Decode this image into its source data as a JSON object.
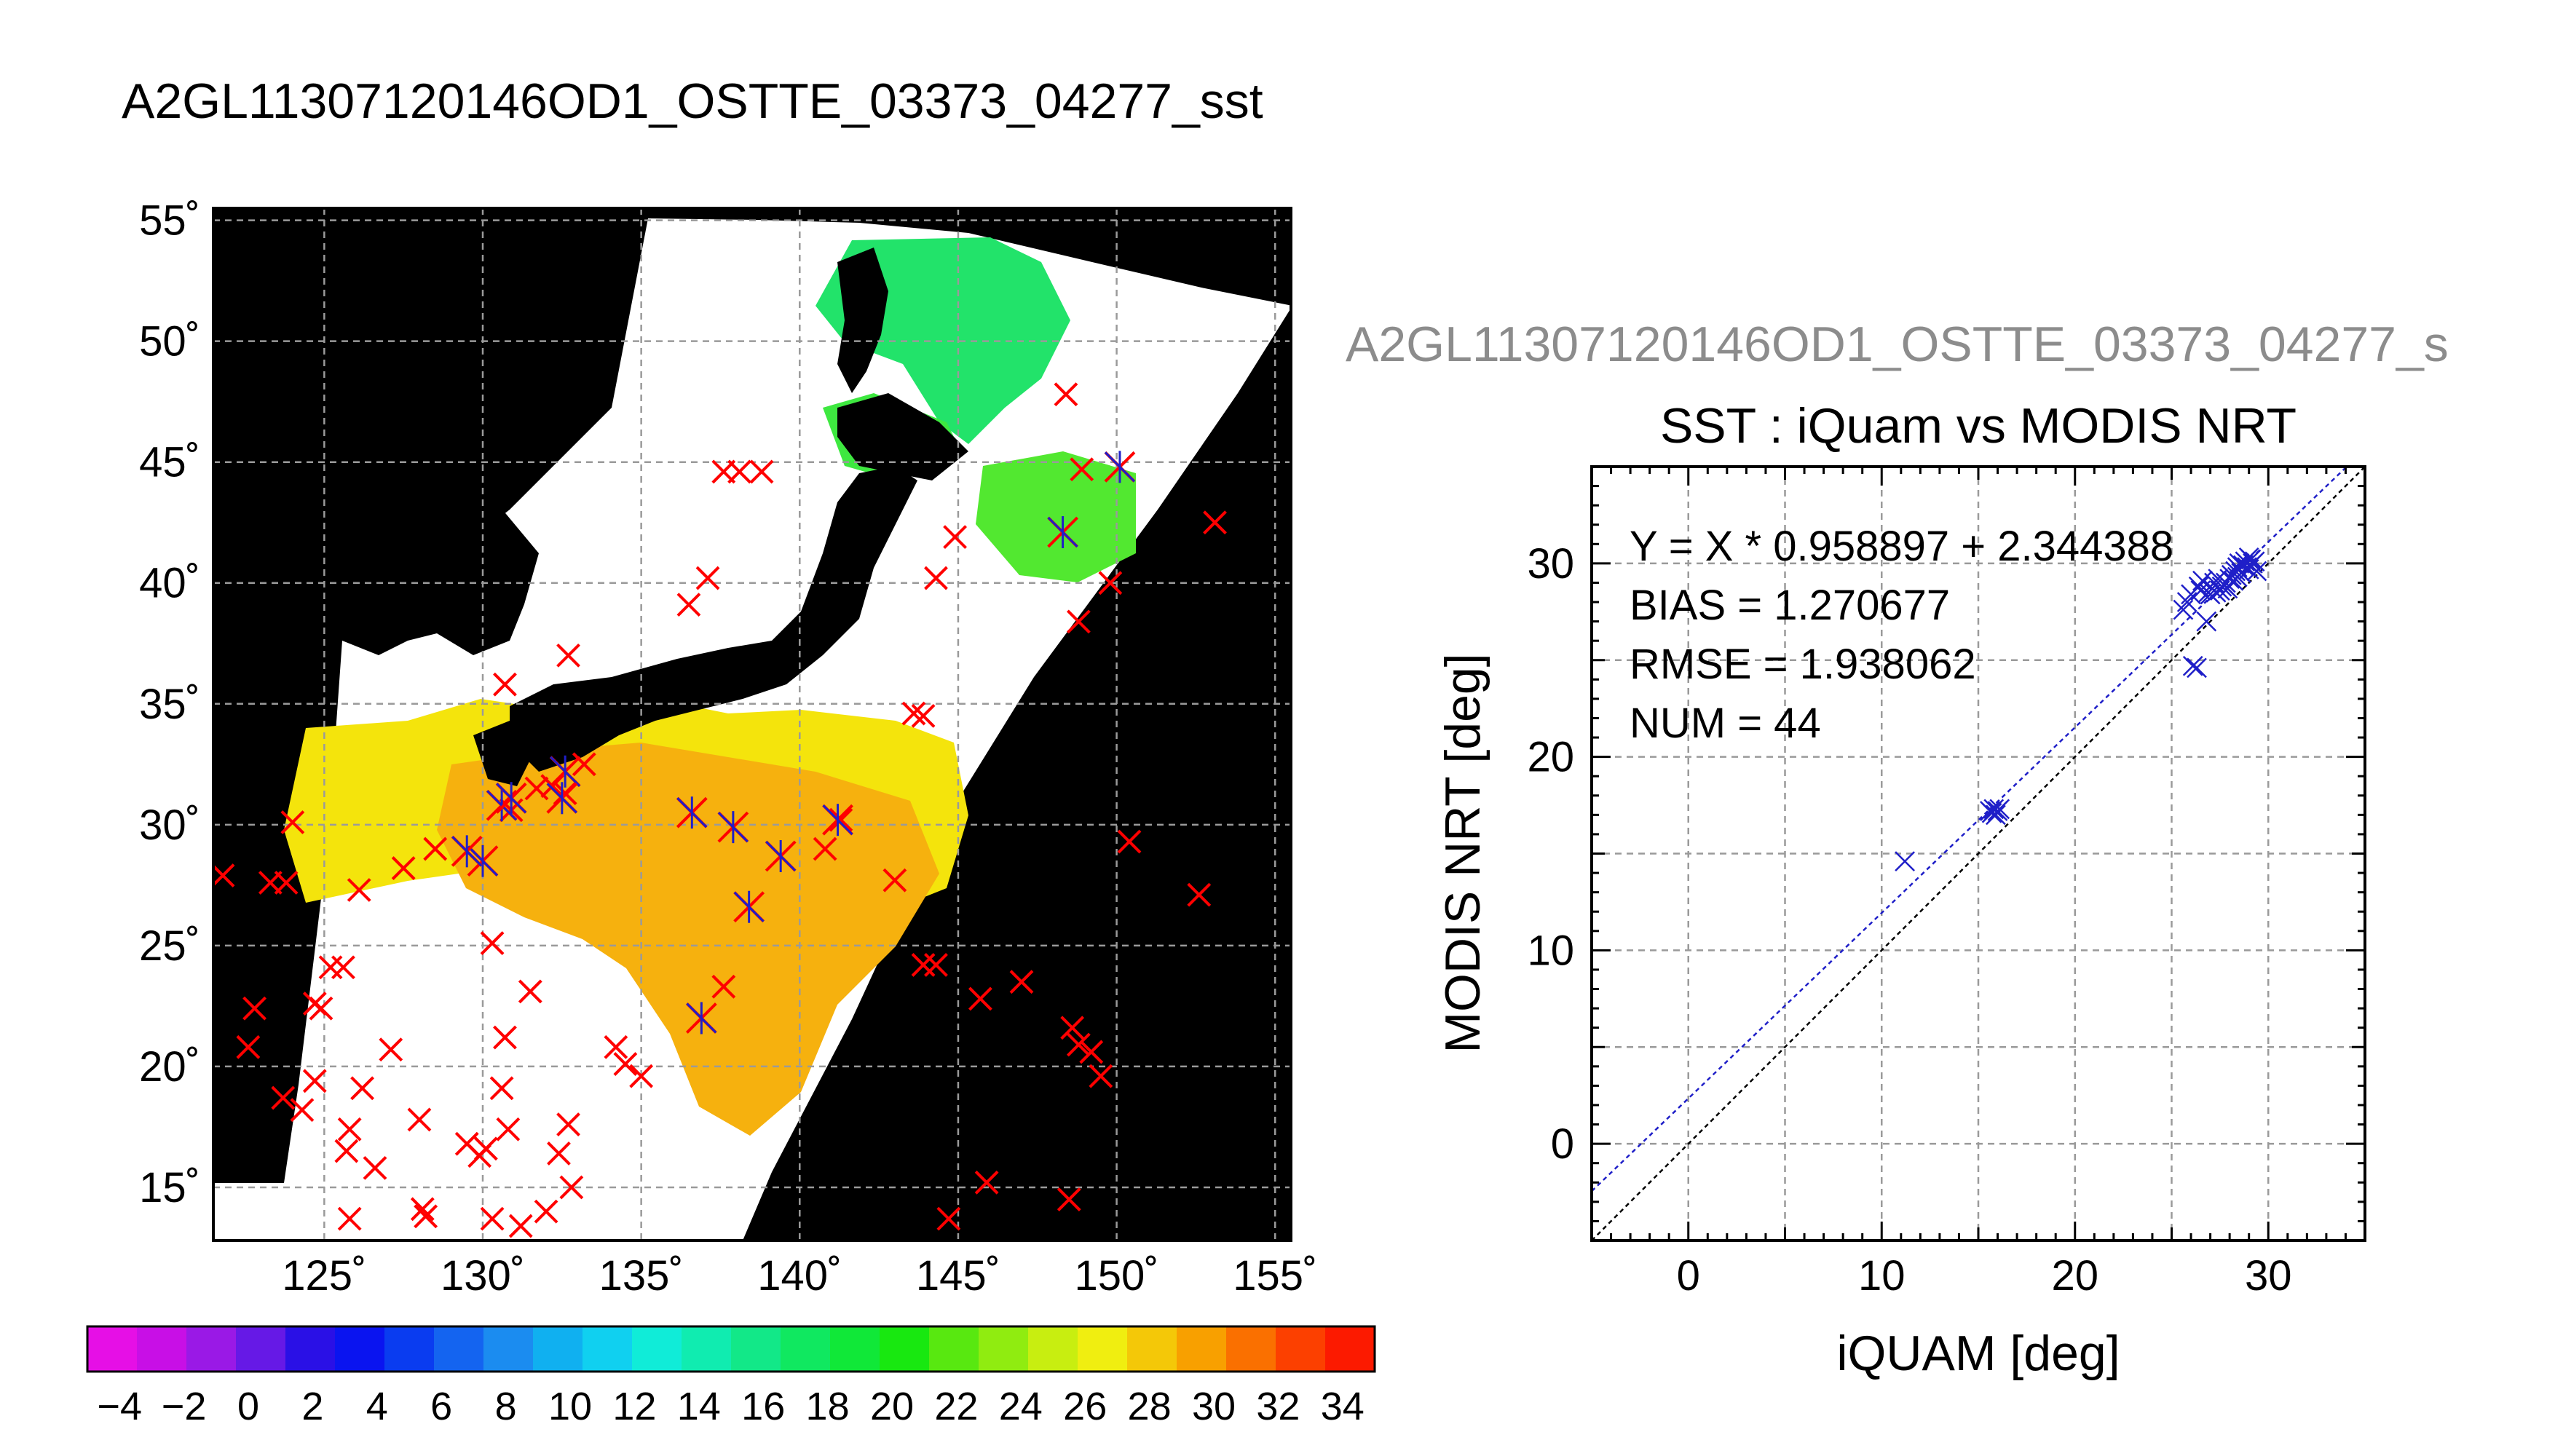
{
  "header": {
    "main_title": "A2GL11307120146OD1_OSTTE_03373_04277_sst",
    "scatter_overtitle": "A2GL11307120146OD1_OSTTE_03373_04277_s"
  },
  "map": {
    "lon_labels": [
      "125˚",
      "130˚",
      "135˚",
      "140˚",
      "145˚",
      "150˚",
      "155˚"
    ],
    "lat_labels": [
      "55˚",
      "50˚",
      "45˚",
      "40˚",
      "35˚",
      "30˚",
      "25˚",
      "20˚",
      "15˚"
    ],
    "lon_range": [
      121.5,
      155.5
    ],
    "lat_range": [
      12.8,
      55.5
    ],
    "colors": {
      "land": "#000000",
      "cloud": "#ffffff",
      "grid": "#9a9a9a",
      "obs": "#ff0000",
      "matchup": "#1f1fc8"
    },
    "observations": [
      [
        121.8,
        27.9
      ],
      [
        123.3,
        27.6
      ],
      [
        124.0,
        30.1
      ],
      [
        123.8,
        27.6
      ],
      [
        122.6,
        20.8
      ],
      [
        122.8,
        22.4
      ],
      [
        124.7,
        22.6
      ],
      [
        124.9,
        22.4
      ],
      [
        125.2,
        24.1
      ],
      [
        125.6,
        24.1
      ],
      [
        123.7,
        18.7
      ],
      [
        124.3,
        18.2
      ],
      [
        124.7,
        19.4
      ],
      [
        125.8,
        17.4
      ],
      [
        125.7,
        16.5
      ],
      [
        126.2,
        19.1
      ],
      [
        126.1,
        27.3
      ],
      [
        125.8,
        13.7
      ],
      [
        126.6,
        15.8
      ],
      [
        127.1,
        20.7
      ],
      [
        128.0,
        17.8
      ],
      [
        128.1,
        14.1
      ],
      [
        128.2,
        13.8
      ],
      [
        129.5,
        16.8
      ],
      [
        129.9,
        16.3
      ],
      [
        130.1,
        16.6
      ],
      [
        130.3,
        13.7
      ],
      [
        130.6,
        19.1
      ],
      [
        130.8,
        17.4
      ],
      [
        131.2,
        13.4
      ],
      [
        130.3,
        25.1
      ],
      [
        130.7,
        21.2
      ],
      [
        131.5,
        23.1
      ],
      [
        132.4,
        16.4
      ],
      [
        132.7,
        17.6
      ],
      [
        132.8,
        15.0
      ],
      [
        132.0,
        14.0
      ],
      [
        134.2,
        20.8
      ],
      [
        134.5,
        20.1
      ],
      [
        135.0,
        19.6
      ],
      [
        137.6,
        23.3
      ],
      [
        130.7,
        35.8
      ],
      [
        132.7,
        37.0
      ],
      [
        133.2,
        32.5
      ],
      [
        132.2,
        31.6
      ],
      [
        136.5,
        39.1
      ],
      [
        137.1,
        40.2
      ],
      [
        137.6,
        44.6
      ],
      [
        138.1,
        44.6
      ],
      [
        138.8,
        44.6
      ],
      [
        140.8,
        29.0
      ],
      [
        143.0,
        27.7
      ],
      [
        143.6,
        34.6
      ],
      [
        143.9,
        34.5
      ],
      [
        143.9,
        24.2
      ],
      [
        144.3,
        24.2
      ],
      [
        144.3,
        40.2
      ],
      [
        144.9,
        41.9
      ],
      [
        145.7,
        22.8
      ],
      [
        145.9,
        15.2
      ],
      [
        144.7,
        13.7
      ],
      [
        147.0,
        23.5
      ],
      [
        148.4,
        47.8
      ],
      [
        148.6,
        21.6
      ],
      [
        148.8,
        20.9
      ],
      [
        149.2,
        20.6
      ],
      [
        149.5,
        19.6
      ],
      [
        148.8,
        38.4
      ],
      [
        149.8,
        40.0
      ],
      [
        148.9,
        44.7
      ],
      [
        150.4,
        29.3
      ],
      [
        152.6,
        27.1
      ],
      [
        153.1,
        42.5
      ],
      [
        148.5,
        14.5
      ],
      [
        141.3,
        30.2
      ],
      [
        130.9,
        30.6
      ],
      [
        131.7,
        31.5
      ],
      [
        132.6,
        31.3
      ],
      [
        127.5,
        28.2
      ],
      [
        128.5,
        29.0
      ]
    ],
    "matchups": [
      [
        130.0,
        28.5
      ],
      [
        129.5,
        28.9
      ],
      [
        130.6,
        30.8
      ],
      [
        130.9,
        31.1
      ],
      [
        132.6,
        32.2
      ],
      [
        132.5,
        31.1
      ],
      [
        136.6,
        30.5
      ],
      [
        137.9,
        29.9
      ],
      [
        138.4,
        26.6
      ],
      [
        139.4,
        28.7
      ],
      [
        141.2,
        30.2
      ],
      [
        136.9,
        22.0
      ],
      [
        148.3,
        42.1
      ],
      [
        150.1,
        44.8
      ]
    ]
  },
  "colorbar": {
    "tick_labels": [
      "−4",
      "−2",
      "0",
      "2",
      "4",
      "6",
      "8",
      "10",
      "12",
      "14",
      "16",
      "18",
      "20",
      "22",
      "24",
      "26",
      "28",
      "30",
      "32",
      "34"
    ],
    "range": [
      -5,
      35
    ],
    "colors": [
      "#e60fe6",
      "#c80fe6",
      "#9a19e6",
      "#6619e6",
      "#2a10e6",
      "#0a14f0",
      "#0a3cf0",
      "#1464f0",
      "#1b8cf0",
      "#10b0f0",
      "#10d0f0",
      "#10ecd8",
      "#10ecb0",
      "#12e888",
      "#10e860",
      "#10e838",
      "#18e810",
      "#58e810",
      "#90ec10",
      "#c8ee10",
      "#f0ee10",
      "#f4c808",
      "#f8a000",
      "#fa7000",
      "#fc4000",
      "#fc1a00"
    ]
  },
  "chart_data": {
    "type": "scatter",
    "title": "SST : iQuam vs MODIS NRT",
    "xlabel": "iQUAM [deg]",
    "ylabel": "MODIS NRT [deg]",
    "xlim": [
      -5,
      35
    ],
    "ylim": [
      -5,
      35
    ],
    "xticks": [
      0,
      10,
      20,
      30
    ],
    "yticks": [
      0,
      10,
      20,
      30
    ],
    "grid": true,
    "annotations": [
      "Y = X * 0.958897 + 2.344388",
      "BIAS = 1.270677",
      "RMSE = 1.938062",
      "NUM = 44"
    ],
    "fit": {
      "slope": 0.958897,
      "intercept": 2.344388,
      "color": "#1f1fc8"
    },
    "identity_line_color": "#000000",
    "marker_color": "#1f1fc8",
    "x": [
      11.2,
      15.6,
      15.8,
      16.0,
      15.9,
      15.7,
      16.1,
      25.6,
      25.8,
      26.1,
      26.3,
      26.0,
      26.4,
      26.6,
      26.8,
      26.5,
      26.9,
      27.0,
      27.2,
      27.1,
      27.3,
      27.5,
      27.4,
      27.6,
      27.8,
      27.9,
      28.0,
      28.1,
      28.2,
      27.7,
      28.3,
      28.4,
      28.5,
      28.6,
      28.4,
      28.7,
      28.8,
      29.0,
      29.1,
      28.9,
      29.2,
      29.3,
      29.4,
      29.0
    ],
    "y": [
      14.6,
      17.2,
      17.3,
      17.2,
      17.0,
      17.1,
      17.3,
      27.6,
      28.0,
      24.7,
      24.6,
      28.4,
      28.8,
      29.1,
      27.0,
      28.6,
      28.5,
      28.4,
      29.0,
      28.7,
      28.5,
      28.6,
      29.2,
      28.8,
      29.0,
      28.7,
      29.2,
      29.4,
      29.1,
      28.9,
      29.6,
      29.8,
      30.0,
      29.5,
      29.3,
      29.9,
      30.1,
      29.7,
      30.2,
      29.8,
      30.0,
      30.1,
      29.6,
      30.3
    ]
  }
}
